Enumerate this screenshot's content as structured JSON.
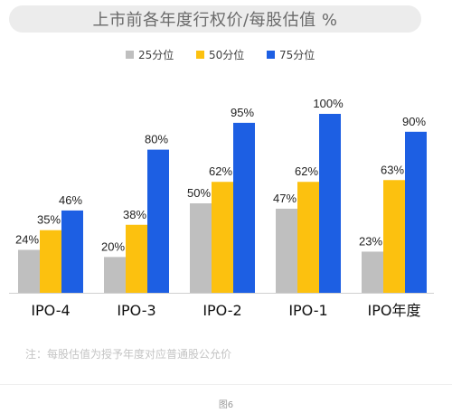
{
  "chart_data": {
    "type": "bar",
    "title": "上市前各年度行权价/每股估值 %",
    "categories": [
      "IPO-4",
      "IPO-3",
      "IPO-2",
      "IPO-1",
      "IPO年度"
    ],
    "series": [
      {
        "name": "25分位",
        "color": "#bfbfbf",
        "values": [
          24,
          20,
          50,
          47,
          23
        ]
      },
      {
        "name": "50分位",
        "color": "#fcc10f",
        "values": [
          35,
          38,
          62,
          62,
          63
        ]
      },
      {
        "name": "75分位",
        "color": "#1d5fe3",
        "values": [
          46,
          80,
          95,
          100,
          90
        ]
      }
    ],
    "value_suffix": "%",
    "ylim": [
      0,
      100
    ],
    "legend_position": "top-center",
    "grid": false,
    "note": "注：每股估值为授予年度对应普通股公允价"
  },
  "caption": "图6"
}
